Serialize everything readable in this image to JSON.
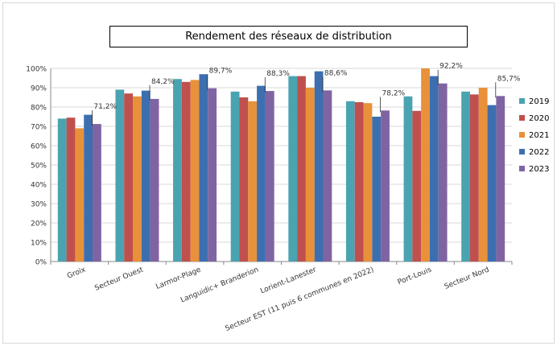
{
  "chart_data": {
    "type": "bar",
    "title": "Rendement des réseaux de distribution",
    "xlabel": "",
    "ylabel": "",
    "ylim": [
      0,
      100
    ],
    "y_ticks": [
      "0%",
      "10%",
      "20%",
      "30%",
      "40%",
      "50%",
      "60%",
      "70%",
      "80%",
      "90%",
      "100%"
    ],
    "grid": "horizontal",
    "legend_position": "right",
    "categories": [
      "Groix",
      "Secteur Ouest",
      "Larmor-Plage",
      "Languidic+ Branderion",
      "Lorient-Lanester",
      "Secteur EST (11 puis 6 communes en 2022)",
      "Port-Louis",
      "Secteur Nord"
    ],
    "series": [
      {
        "name": "2019",
        "color": "#4aa3b0",
        "values": [
          74,
          89,
          94.5,
          88,
          96,
          83,
          85.5,
          88
        ]
      },
      {
        "name": "2020",
        "color": "#c0504d",
        "values": [
          74.5,
          87,
          93,
          85,
          96,
          82.5,
          78,
          86.5
        ]
      },
      {
        "name": "2021",
        "color": "#e8913a",
        "values": [
          69,
          85.5,
          94,
          83,
          90,
          82,
          100,
          90
        ]
      },
      {
        "name": "2022",
        "color": "#3d6fb0",
        "values": [
          76,
          88.5,
          97,
          91,
          98.5,
          75,
          96,
          81
        ]
      },
      {
        "name": "2023",
        "color": "#8064a2",
        "values": [
          71.2,
          84.2,
          89.7,
          88.3,
          88.6,
          78.2,
          92.2,
          85.7
        ]
      }
    ],
    "annotations": [
      "71,2%",
      "84,2%",
      "89,7%",
      "88,3%",
      "88,6%",
      "78,2%",
      "92,2%",
      "85,7%"
    ]
  }
}
